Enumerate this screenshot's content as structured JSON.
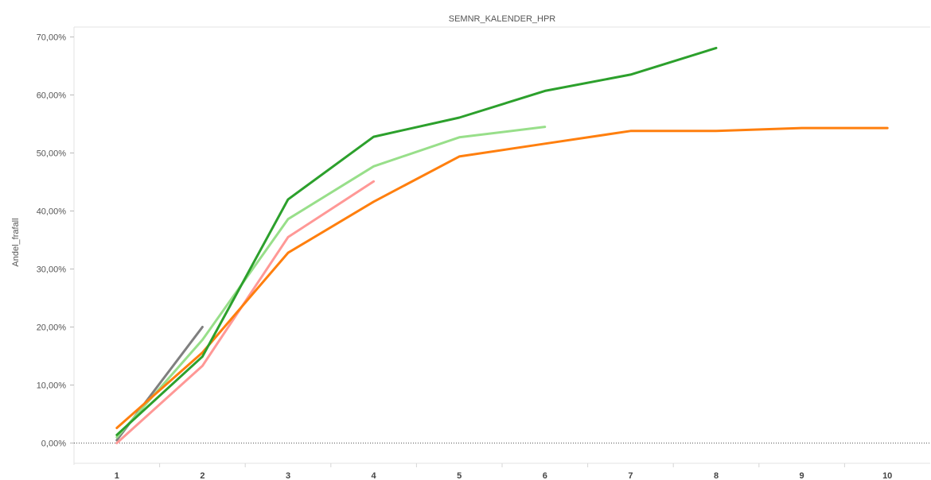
{
  "chart_data": {
    "type": "line",
    "title": "",
    "xlabel": "SEMNR_KALENDER_HPR",
    "ylabel": "Andel_frafall",
    "x": [
      1,
      2,
      3,
      4,
      5,
      6,
      7,
      8,
      9,
      10
    ],
    "x_tick_labels": [
      "1",
      "2",
      "3",
      "4",
      "5",
      "6",
      "7",
      "8",
      "9",
      "10"
    ],
    "ylim": [
      -0.04,
      0.71
    ],
    "y_ticks": [
      0,
      0.1,
      0.2,
      0.3,
      0.4,
      0.5,
      0.6,
      0.7
    ],
    "y_tick_labels": [
      "0,00%",
      "10,00%",
      "20,00%",
      "30,00%",
      "40,00%",
      "50,00%",
      "60,00%",
      "70,00%"
    ],
    "grid": false,
    "zero_line": "dotted",
    "series": [
      {
        "color": "#7f7f7f",
        "x": [
          1,
          2
        ],
        "values": [
          0.005,
          0.2
        ]
      },
      {
        "color": "#ff9896",
        "x": [
          1,
          2,
          3,
          4
        ],
        "values": [
          0.0,
          0.133,
          0.355,
          0.451
        ]
      },
      {
        "color": "#98df8a",
        "x": [
          1,
          2,
          3,
          4,
          5,
          6
        ],
        "values": [
          0.01,
          0.178,
          0.386,
          0.477,
          0.527,
          0.545
        ]
      },
      {
        "color": "#ff7f0e",
        "x": [
          1,
          2,
          3,
          4,
          5,
          6,
          7,
          8,
          9,
          10
        ],
        "values": [
          0.026,
          0.156,
          0.328,
          0.416,
          0.494,
          0.516,
          0.538,
          0.538,
          0.543,
          0.543
        ]
      },
      {
        "color": "#2ca02c",
        "x": [
          1,
          2,
          3,
          4,
          5,
          6,
          7,
          8
        ],
        "values": [
          0.014,
          0.149,
          0.42,
          0.528,
          0.561,
          0.607,
          0.635,
          0.681
        ]
      }
    ]
  }
}
